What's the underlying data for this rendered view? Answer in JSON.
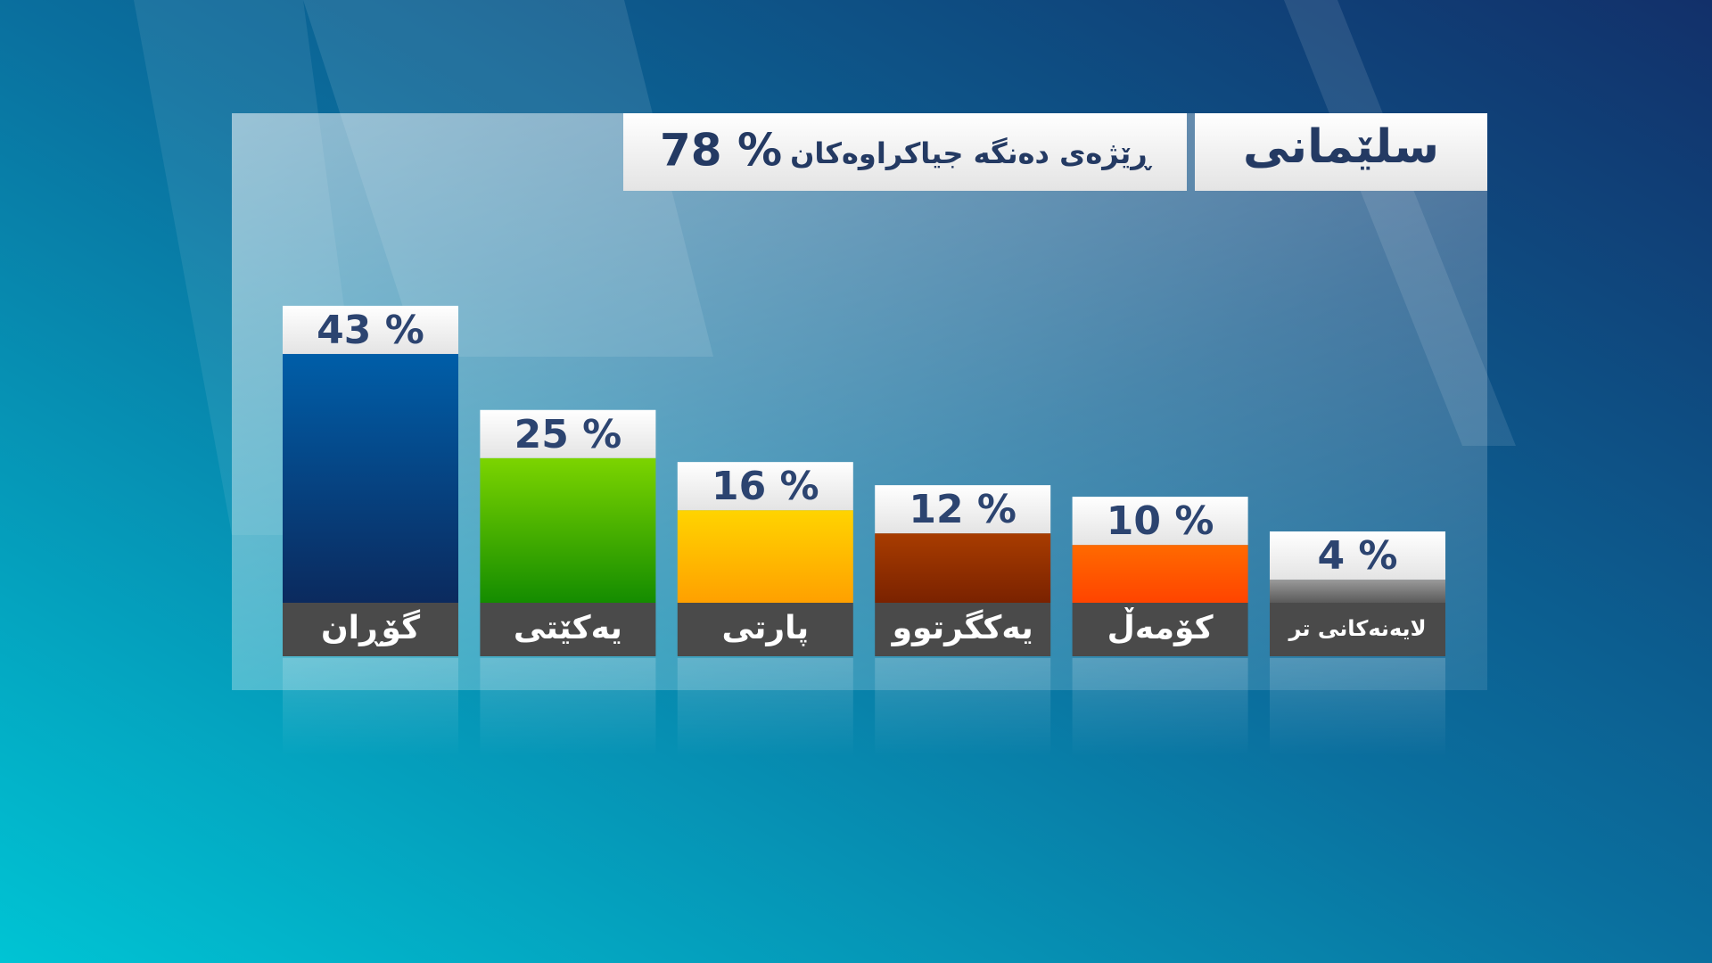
{
  "chart_data": {
    "type": "bar",
    "title": "سلێمانی",
    "subtitle": "ڕێژەی دەنگە جیاکراوەکان",
    "subtitle_value": "78 %",
    "categories": [
      "گۆڕان",
      "یەکێتی",
      "پارتی",
      "یەکگرتوو",
      "کۆمەڵ",
      "لایەنەکانی تر"
    ],
    "values": [
      43,
      25,
      16,
      12,
      10,
      4
    ],
    "value_labels": [
      "43 %",
      "25 %",
      "16 %",
      "12 %",
      "10 %",
      "4 %"
    ],
    "colors": [
      [
        "#005ea8",
        "#0b2a5e"
      ],
      [
        "#7cd400",
        "#148c00"
      ],
      [
        "#ffd400",
        "#ffa000"
      ],
      [
        "#a83c00",
        "#7a2200"
      ],
      [
        "#ff6a00",
        "#ff4400"
      ],
      [
        "#9a9a9a",
        "#5a5a5a"
      ]
    ]
  }
}
